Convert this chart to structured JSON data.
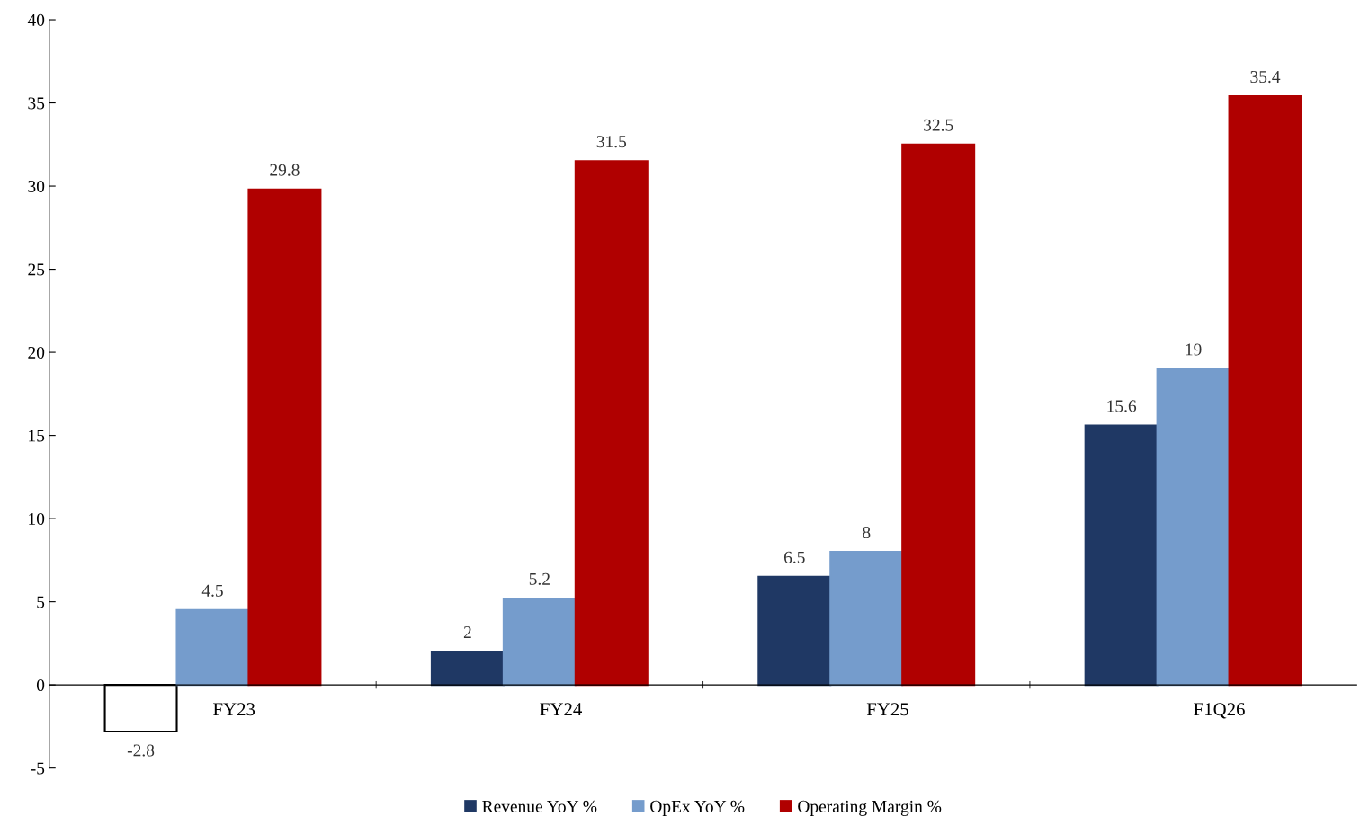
{
  "chart_data": {
    "type": "bar",
    "categories": [
      "FY23",
      "FY24",
      "FY25",
      "F1Q26"
    ],
    "series": [
      {
        "name": "Revenue YoY %",
        "color": "#1f3864",
        "colors": [
          "#ffffff",
          "#1f3864",
          "#1f3864",
          "#1f3864"
        ],
        "values": [
          -2.8,
          2,
          6.5,
          15.6
        ]
      },
      {
        "name": "OpEx YoY %",
        "color": "#759ccc",
        "values": [
          4.5,
          5.2,
          8,
          19
        ]
      },
      {
        "name": "Operating Margin %",
        "color": "#b00000",
        "values": [
          29.8,
          31.5,
          32.5,
          35.4
        ]
      }
    ],
    "ylim": [
      -5,
      40
    ],
    "yticks": [
      -5,
      0,
      5,
      10,
      15,
      20,
      25,
      30,
      35,
      40
    ],
    "data_labels": true,
    "grid": false,
    "legend": "bottom"
  }
}
